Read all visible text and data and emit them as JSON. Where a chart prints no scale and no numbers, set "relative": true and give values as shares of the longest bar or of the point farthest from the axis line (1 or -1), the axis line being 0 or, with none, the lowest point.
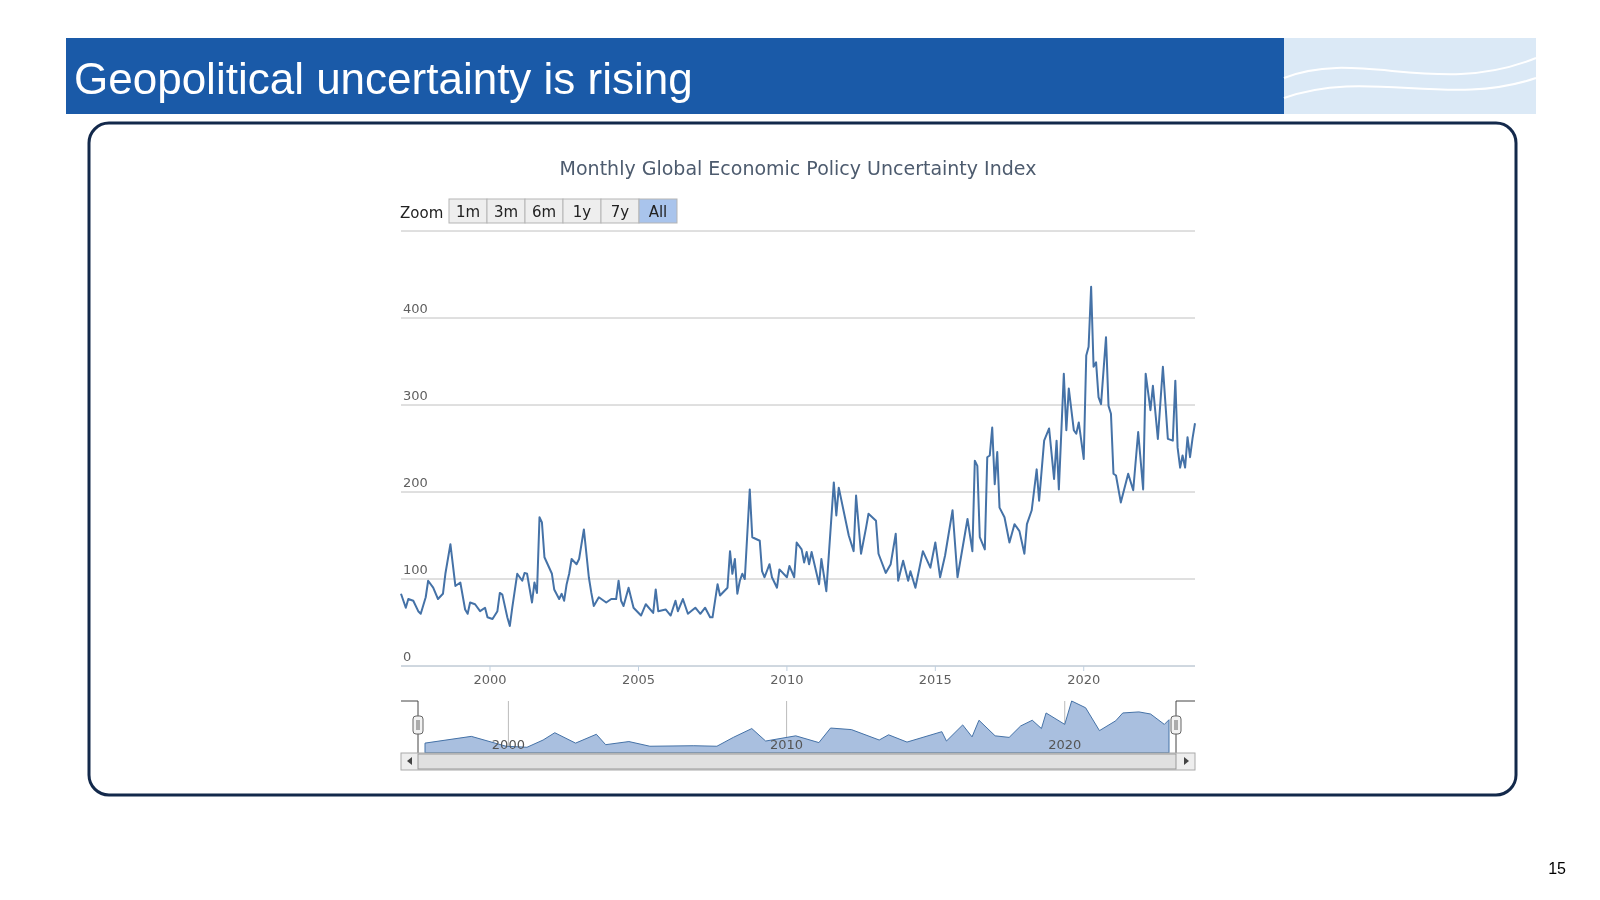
{
  "chart_data": [
    {
      "type": "line",
      "title": "Monthly Global Economic Policy Uncertainty Index",
      "annotations": [
        "Geopolitical uncertainty is rising",
        "Zoom",
        "1m",
        "3m",
        "6m",
        "1y",
        "7y",
        "All",
        "15"
      ],
      "x": [
        "1997-01",
        "1997-03",
        "1997-04",
        "1997-06",
        "1997-08",
        "1997-09",
        "1997-11",
        "1997-12",
        "1998-02",
        "1998-04",
        "1998-06",
        "1998-07",
        "1998-09",
        "1998-11",
        "1999-01",
        "1999-03",
        "1999-04",
        "1999-05",
        "1999-07",
        "1999-09",
        "1999-11",
        "1999-12",
        "2000-02",
        "2000-04",
        "2000-05",
        "2000-06",
        "2000-08",
        "2000-09",
        "2000-10",
        "2000-12",
        "2001-02",
        "2001-03",
        "2001-04",
        "2001-06",
        "2001-07",
        "2001-08",
        "2001-09",
        "2001-10",
        "2001-11",
        "2002-02",
        "2002-03",
        "2002-05",
        "2002-06",
        "2002-07",
        "2002-08",
        "2002-09",
        "2002-10",
        "2002-12",
        "2003-01",
        "2003-03",
        "2003-05",
        "2003-06",
        "2003-07",
        "2003-09",
        "2003-12",
        "2004-02",
        "2004-04",
        "2004-05",
        "2004-06",
        "2004-07",
        "2004-09",
        "2004-11",
        "2005-02",
        "2005-04",
        "2005-07",
        "2005-08",
        "2005-09",
        "2005-12",
        "2006-02",
        "2006-04",
        "2006-05",
        "2006-07",
        "2006-09",
        "2006-12",
        "2007-02",
        "2007-04",
        "2007-06",
        "2007-07",
        "2007-09",
        "2007-10",
        "2008-01",
        "2008-02",
        "2008-03",
        "2008-04",
        "2008-05",
        "2008-06",
        "2008-07",
        "2008-08",
        "2008-10",
        "2008-11",
        "2009-02",
        "2009-03",
        "2009-04",
        "2009-06",
        "2009-07",
        "2009-09",
        "2009-10",
        "2010-01",
        "2010-02",
        "2010-04",
        "2010-05",
        "2010-07",
        "2010-08",
        "2010-09",
        "2010-10",
        "2010-11",
        "2011-02",
        "2011-03",
        "2011-05",
        "2011-08",
        "2011-09",
        "2011-10",
        "2012-02",
        "2012-04",
        "2012-05",
        "2012-07",
        "2012-09",
        "2012-10",
        "2013-01",
        "2013-02",
        "2013-05",
        "2013-07",
        "2013-09",
        "2013-10",
        "2013-12",
        "2014-02",
        "2014-03",
        "2014-05",
        "2014-08",
        "2014-11",
        "2015-01",
        "2015-03",
        "2015-05",
        "2015-08",
        "2015-10",
        "2016-01",
        "2016-02",
        "2016-04",
        "2016-05",
        "2016-06",
        "2016-07",
        "2016-09",
        "2016-10",
        "2016-11",
        "2016-12",
        "2017-01",
        "2017-02",
        "2017-03",
        "2017-05",
        "2017-07",
        "2017-09",
        "2017-11",
        "2018-01",
        "2018-02",
        "2018-04",
        "2018-06",
        "2018-07",
        "2018-09",
        "2018-11",
        "2019-01",
        "2019-02",
        "2019-03",
        "2019-05",
        "2019-06",
        "2019-07",
        "2019-09",
        "2019-10",
        "2019-11",
        "2020-01",
        "2020-02",
        "2020-03",
        "2020-04",
        "2020-05",
        "2020-06",
        "2020-07",
        "2020-08",
        "2020-10",
        "2020-11",
        "2020-12",
        "2021-01",
        "2021-02",
        "2021-04",
        "2021-07",
        "2021-09",
        "2021-11",
        "2022-01",
        "2022-02",
        "2022-04",
        "2022-05",
        "2022-07",
        "2022-09",
        "2022-11",
        "2023-01",
        "2023-02",
        "2023-03",
        "2023-04",
        "2023-05",
        "2023-06",
        "2023-07",
        "2023-08",
        "2023-09",
        "2023-10"
      ],
      "series": [
        {
          "color": "#4572a7",
          "values": [
            83,
            67,
            77,
            75,
            63,
            60,
            79,
            98,
            90,
            77,
            83,
            106,
            140,
            92,
            96,
            65,
            60,
            73,
            71,
            63,
            67,
            56,
            54,
            63,
            84,
            82,
            56,
            46,
            67,
            106,
            98,
            107,
            106,
            73,
            96,
            84,
            171,
            165,
            125,
            106,
            88,
            77,
            83,
            75,
            94,
            106,
            123,
            117,
            123,
            157,
            102,
            84,
            69,
            79,
            73,
            77,
            77,
            98,
            75,
            69,
            90,
            67,
            58,
            71,
            61,
            88,
            63,
            65,
            58,
            75,
            63,
            77,
            60,
            67,
            60,
            67,
            56,
            56,
            94,
            81,
            90,
            132,
            106,
            123,
            83,
            98,
            106,
            100,
            203,
            148,
            144,
            109,
            102,
            117,
            102,
            90,
            111,
            102,
            115,
            102,
            142,
            134,
            119,
            131,
            117,
            131,
            94,
            123,
            86,
            211,
            173,
            205,
            150,
            132,
            196,
            129,
            159,
            175,
            167,
            129,
            107,
            117,
            152,
            98,
            121,
            98,
            109,
            90,
            132,
            113,
            142,
            102,
            127,
            179,
            102,
            152,
            169,
            132,
            236,
            230,
            148,
            134,
            240,
            242,
            274,
            209,
            246,
            182,
            171,
            142,
            163,
            155,
            129,
            163,
            179,
            226,
            190,
            259,
            273,
            215,
            259,
            203,
            336,
            271,
            319,
            271,
            267,
            280,
            238,
            357,
            367,
            436,
            344,
            349,
            309,
            301,
            378,
            299,
            290,
            221,
            219,
            188,
            221,
            202,
            269,
            203,
            336,
            294,
            322,
            261,
            344,
            261,
            259,
            328,
            251,
            228,
            242,
            228,
            263,
            240,
            262,
            279
          ]
        }
      ],
      "xlim": [
        "1997-01",
        "2023-10"
      ],
      "xticks": [
        "2000",
        "2005",
        "2010",
        "2015",
        "2020"
      ],
      "ylim": [
        0,
        500
      ],
      "yticks": [
        0,
        100,
        200,
        300,
        400
      ],
      "grid": "y"
    },
    {
      "type": "area",
      "relative": true,
      "tick_labels": "x",
      "grid": "x",
      "x": [
        "1997-01",
        "1998-09",
        "1999-12",
        "2000-09",
        "2001-04",
        "2001-09",
        "2002-06",
        "2003-03",
        "2003-07",
        "2004-05",
        "2005-02",
        "2006-09",
        "2007-07",
        "2008-02",
        "2008-10",
        "2009-04",
        "2010-05",
        "2011-03",
        "2011-08",
        "2012-05",
        "2013-05",
        "2013-09",
        "2014-05",
        "2015-08",
        "2015-10",
        "2016-05",
        "2016-09",
        "2016-12",
        "2017-07",
        "2018-01",
        "2018-06",
        "2018-11",
        "2019-03",
        "2019-05",
        "2020-01",
        "2020-04",
        "2020-10",
        "2021-04",
        "2021-11",
        "2022-02",
        "2022-09",
        "2023-02",
        "2023-08",
        "2023-10"
      ],
      "series": [
        {
          "color": "#a9bfdf",
          "values": [
            0.19,
            0.32,
            0.13,
            0.11,
            0.25,
            0.39,
            0.19,
            0.36,
            0.16,
            0.22,
            0.13,
            0.14,
            0.13,
            0.3,
            0.47,
            0.23,
            0.33,
            0.2,
            0.48,
            0.45,
            0.25,
            0.35,
            0.21,
            0.41,
            0.23,
            0.54,
            0.31,
            0.63,
            0.33,
            0.3,
            0.52,
            0.63,
            0.47,
            0.77,
            0.55,
            1,
            0.87,
            0.43,
            0.62,
            0.77,
            0.79,
            0.75,
            0.55,
            0.64
          ]
        }
      ],
      "xlim": [
        "1997-01",
        "2023-10"
      ],
      "xticks": [
        "2000",
        "2010",
        "2020"
      ]
    }
  ]
}
